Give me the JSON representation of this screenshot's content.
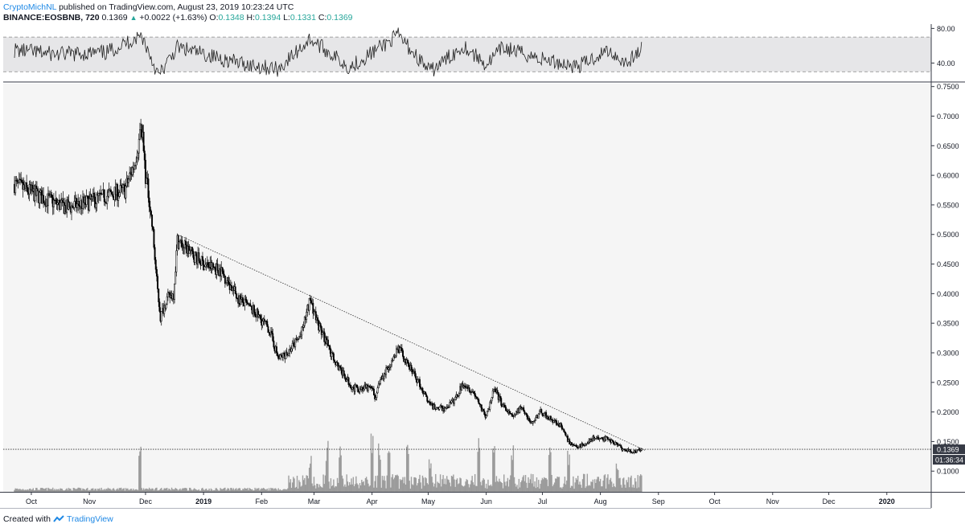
{
  "header": {
    "author": "CryptoMichNL",
    "published": "published on TradingView.com, August 23, 2019 10:23:24 UTC",
    "symbol": "BINANCE:EOSBNB, 720",
    "last": "0.1369",
    "arrow": "▲",
    "change": "+0.0022 (+1.63%)",
    "o_label": "O:",
    "o_value": "0.1348",
    "h_label": "H:",
    "h_value": "0.1394",
    "l_label": "L:",
    "l_value": "0.1331",
    "c_label": "C:",
    "c_value": "0.1369"
  },
  "footer": {
    "created_with": "Created with",
    "brand": "TradingView"
  },
  "chart_data": {
    "type": "candlestick",
    "x_tick_labels": [
      "Oct",
      "Nov",
      "Dec",
      "2019",
      "Feb",
      "Mar",
      "Apr",
      "May",
      "Jun",
      "Jul",
      "Aug",
      "Sep",
      "Oct",
      "Nov",
      "Dec",
      "2020"
    ],
    "price_axis": {
      "ticks": [
        "0.7500",
        "0.7000",
        "0.6500",
        "0.6000",
        "0.5500",
        "0.5000",
        "0.4500",
        "0.4000",
        "0.3500",
        "0.3000",
        "0.2500",
        "0.2000",
        "0.1500",
        "0.1000"
      ],
      "ylim": [
        0.065,
        0.755
      ],
      "current_price_label": "0.1369",
      "countdown_label": "01:36:34"
    },
    "rsi_axis": {
      "ticks": [
        "80.00",
        "40.00"
      ],
      "ylim": [
        20,
        85
      ],
      "band": [
        30,
        70
      ]
    },
    "trendline": {
      "from": {
        "date": "2018-12-18",
        "price": 0.5
      },
      "to": {
        "date": "2019-08-25",
        "price": 0.135
      }
    },
    "horizontal_line": 0.1369,
    "price_keypoints": [
      [
        "2018-09-22",
        0.585
      ],
      [
        "2018-10-05",
        0.565
      ],
      [
        "2018-10-20",
        0.545
      ],
      [
        "2018-11-01",
        0.555
      ],
      [
        "2018-11-10",
        0.565
      ],
      [
        "2018-11-20",
        0.575
      ],
      [
        "2018-11-25",
        0.62
      ],
      [
        "2018-11-29",
        0.68
      ],
      [
        "2018-12-01",
        0.6
      ],
      [
        "2018-12-03",
        0.56
      ],
      [
        "2018-12-05",
        0.5
      ],
      [
        "2018-12-07",
        0.42
      ],
      [
        "2018-12-09",
        0.36
      ],
      [
        "2018-12-12",
        0.39
      ],
      [
        "2018-12-16",
        0.4
      ],
      [
        "2018-12-18",
        0.49
      ],
      [
        "2018-12-25",
        0.47
      ],
      [
        "2019-01-01",
        0.45
      ],
      [
        "2019-01-10",
        0.44
      ],
      [
        "2019-01-20",
        0.39
      ],
      [
        "2019-01-28",
        0.37
      ],
      [
        "2019-02-05",
        0.34
      ],
      [
        "2019-02-10",
        0.29
      ],
      [
        "2019-02-15",
        0.3
      ],
      [
        "2019-02-22",
        0.33
      ],
      [
        "2019-02-27",
        0.39
      ],
      [
        "2019-03-03",
        0.35
      ],
      [
        "2019-03-10",
        0.3
      ],
      [
        "2019-03-15",
        0.27
      ],
      [
        "2019-03-22",
        0.24
      ],
      [
        "2019-04-01",
        0.24
      ],
      [
        "2019-04-03",
        0.22
      ],
      [
        "2019-04-05",
        0.25
      ],
      [
        "2019-04-10",
        0.28
      ],
      [
        "2019-04-15",
        0.31
      ],
      [
        "2019-04-20",
        0.28
      ],
      [
        "2019-04-26",
        0.25
      ],
      [
        "2019-05-02",
        0.21
      ],
      [
        "2019-05-10",
        0.205
      ],
      [
        "2019-05-15",
        0.22
      ],
      [
        "2019-05-20",
        0.25
      ],
      [
        "2019-05-26",
        0.23
      ],
      [
        "2019-06-01",
        0.19
      ],
      [
        "2019-06-05",
        0.24
      ],
      [
        "2019-06-10",
        0.21
      ],
      [
        "2019-06-15",
        0.19
      ],
      [
        "2019-06-20",
        0.21
      ],
      [
        "2019-06-25",
        0.18
      ],
      [
        "2019-06-30",
        0.2
      ],
      [
        "2019-07-05",
        0.19
      ],
      [
        "2019-07-10",
        0.18
      ],
      [
        "2019-07-15",
        0.15
      ],
      [
        "2019-07-20",
        0.14
      ],
      [
        "2019-07-28",
        0.155
      ],
      [
        "2019-08-05",
        0.155
      ],
      [
        "2019-08-10",
        0.145
      ],
      [
        "2019-08-14",
        0.135
      ],
      [
        "2019-08-19",
        0.133
      ],
      [
        "2019-08-23",
        0.137
      ]
    ],
    "rsi_keypoints": [
      [
        "2018-09-22",
        55
      ],
      [
        "2018-10-15",
        50
      ],
      [
        "2018-11-10",
        52
      ],
      [
        "2018-11-29",
        72
      ],
      [
        "2018-12-08",
        25
      ],
      [
        "2018-12-18",
        58
      ],
      [
        "2019-01-20",
        40
      ],
      [
        "2019-02-10",
        33
      ],
      [
        "2019-02-27",
        68
      ],
      [
        "2019-03-20",
        35
      ],
      [
        "2019-04-15",
        72
      ],
      [
        "2019-05-02",
        30
      ],
      [
        "2019-05-20",
        60
      ],
      [
        "2019-06-01",
        38
      ],
      [
        "2019-06-10",
        58
      ],
      [
        "2019-06-30",
        45
      ],
      [
        "2019-07-20",
        36
      ],
      [
        "2019-08-05",
        55
      ],
      [
        "2019-08-15",
        40
      ],
      [
        "2019-08-23",
        56
      ]
    ],
    "volume_spikes": [
      [
        "2018-11-28",
        0.75
      ],
      [
        "2019-02-27",
        0.65
      ],
      [
        "2019-03-08",
        0.85
      ],
      [
        "2019-03-15",
        0.9
      ],
      [
        "2019-04-01",
        1.0
      ],
      [
        "2019-04-05",
        0.85
      ],
      [
        "2019-04-10",
        0.7
      ],
      [
        "2019-04-20",
        0.8
      ],
      [
        "2019-05-02",
        0.55
      ],
      [
        "2019-05-28",
        0.9
      ],
      [
        "2019-06-05",
        0.85
      ],
      [
        "2019-06-15",
        0.8
      ],
      [
        "2019-07-05",
        0.75
      ],
      [
        "2019-07-15",
        0.7
      ],
      [
        "2019-08-10",
        0.5
      ]
    ]
  }
}
